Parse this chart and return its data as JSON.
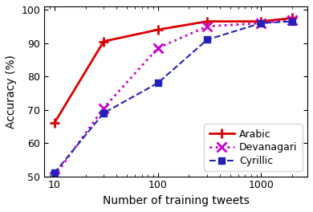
{
  "arabic_x": [
    10,
    30,
    100,
    300,
    1000,
    2000
  ],
  "arabic_y": [
    66,
    90.5,
    94,
    96.5,
    96.5,
    97.5
  ],
  "devanagari_x": [
    10,
    30,
    100,
    300,
    1000,
    2000
  ],
  "devanagari_y": [
    50,
    70.5,
    88.5,
    95,
    96,
    97
  ],
  "cyrillic_x": [
    10,
    30,
    100,
    300,
    1000,
    2000
  ],
  "cyrillic_y": [
    51,
    69,
    78,
    91,
    96,
    96.5
  ],
  "arabic_color": "#dd0000",
  "devanagari_color": "#cc00cc",
  "cyrillic_color": "#2222bb",
  "xlim_lo": 8,
  "xlim_hi": 2800,
  "ylim_lo": 50,
  "ylim_hi": 101,
  "xlabel": "Number of training tweets",
  "ylabel": "Accuracy (%)",
  "yticks": [
    50,
    60,
    70,
    80,
    90,
    100
  ],
  "xticks": [
    10,
    100,
    1000
  ],
  "xticklabels": [
    "10",
    "100",
    "1000"
  ],
  "legend_labels": [
    "Arabic",
    "Devanagari",
    "Cyrillic"
  ],
  "legend_loc": "lower right",
  "legend_fontsize": 9,
  "tick_labelsize": 9,
  "axis_labelsize": 10
}
